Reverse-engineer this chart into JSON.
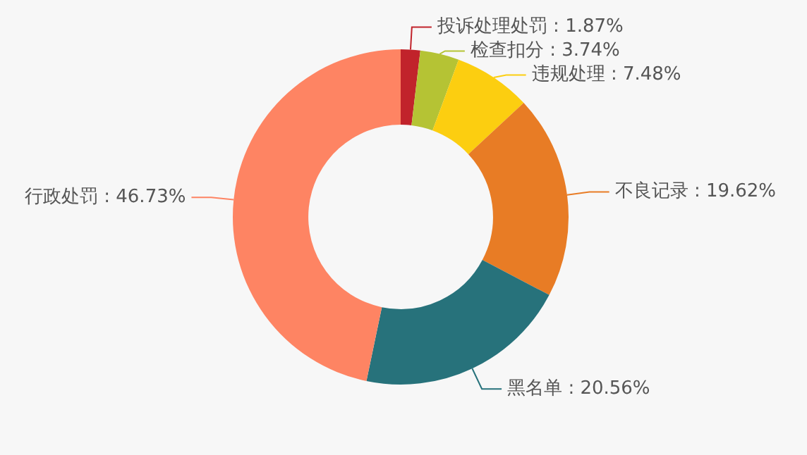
{
  "chart_data": {
    "type": "donut",
    "categories": [
      "投诉处理处罚",
      "检查扣分",
      "违规处理",
      "不良记录",
      "黑名单",
      "行政处罚"
    ],
    "values": [
      1.87,
      3.74,
      7.48,
      19.62,
      20.56,
      46.73
    ],
    "value_labels": [
      ": 1.87%",
      ": 3.74%",
      ": 7.48%",
      ": 19.62%",
      ": 20.56%",
      ": 46.73%"
    ],
    "colors": [
      "#c1232b",
      "#b5c334",
      "#fcce10",
      "#e87c25",
      "#27727b",
      "#fe8463"
    ],
    "legend": false
  }
}
